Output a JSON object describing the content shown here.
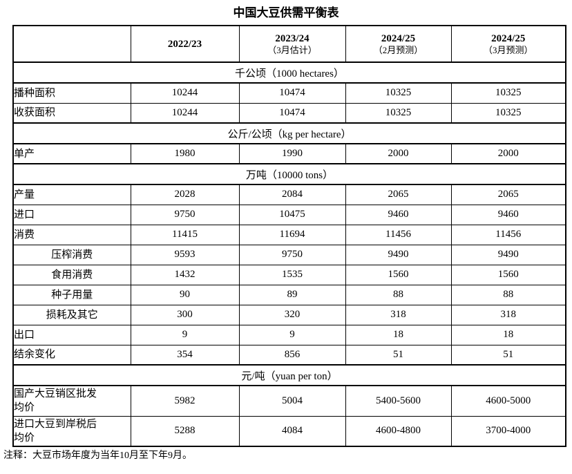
{
  "title": "中国大豆供需平衡表",
  "footnote": "注释：大豆市场年度为当年10月至下年9月。",
  "table": {
    "columns": [
      {
        "year": "",
        "subtitle": ""
      },
      {
        "year": "2022/23",
        "subtitle": ""
      },
      {
        "year": "2023/24",
        "subtitle": "（3月估计）"
      },
      {
        "year": "2024/25",
        "subtitle": "（2月预测）"
      },
      {
        "year": "2024/25",
        "subtitle": "（3月预测）"
      }
    ],
    "sections": [
      {
        "unit": "千公顷（1000 hectares）",
        "rows": [
          {
            "label": "播种面积",
            "indent": false,
            "tall": false,
            "values": [
              "10244",
              "10474",
              "10325",
              "10325"
            ]
          },
          {
            "label": "收获面积",
            "indent": false,
            "tall": false,
            "values": [
              "10244",
              "10474",
              "10325",
              "10325"
            ]
          }
        ]
      },
      {
        "unit": "公斤/公顷（kg per hectare）",
        "rows": [
          {
            "label": "单产",
            "indent": false,
            "tall": false,
            "values": [
              "1980",
              "1990",
              "2000",
              "2000"
            ]
          }
        ]
      },
      {
        "unit": "万吨（10000 tons）",
        "rows": [
          {
            "label": "产量",
            "indent": false,
            "tall": false,
            "values": [
              "2028",
              "2084",
              "2065",
              "2065"
            ]
          },
          {
            "label": "进口",
            "indent": false,
            "tall": false,
            "values": [
              "9750",
              "10475",
              "9460",
              "9460"
            ]
          },
          {
            "label": "消费",
            "indent": false,
            "tall": false,
            "values": [
              "11415",
              "11694",
              "11456",
              "11456"
            ]
          },
          {
            "label": "压榨消费",
            "indent": true,
            "tall": false,
            "values": [
              "9593",
              "9750",
              "9490",
              "9490"
            ]
          },
          {
            "label": "食用消费",
            "indent": true,
            "tall": false,
            "values": [
              "1432",
              "1535",
              "1560",
              "1560"
            ]
          },
          {
            "label": "种子用量",
            "indent": true,
            "tall": false,
            "values": [
              "90",
              "89",
              "88",
              "88"
            ]
          },
          {
            "label": "损耗及其它",
            "indent": true,
            "tall": false,
            "values": [
              "300",
              "320",
              "318",
              "318"
            ]
          },
          {
            "label": "出口",
            "indent": false,
            "tall": false,
            "values": [
              "9",
              "9",
              "18",
              "18"
            ]
          },
          {
            "label": "结余变化",
            "indent": false,
            "tall": false,
            "values": [
              "354",
              "856",
              "51",
              "51"
            ]
          }
        ]
      },
      {
        "unit": "元/吨（yuan per ton）",
        "rows": [
          {
            "label": "国产大豆销区批发\n均价",
            "indent": false,
            "tall": true,
            "values": [
              "5982",
              "5004",
              "5400-5600",
              "4600-5000"
            ]
          },
          {
            "label": "进口大豆到岸税后\n均价",
            "indent": false,
            "tall": true,
            "values": [
              "5288",
              "4084",
              "4600-4800",
              "3700-4000"
            ]
          }
        ]
      }
    ]
  }
}
